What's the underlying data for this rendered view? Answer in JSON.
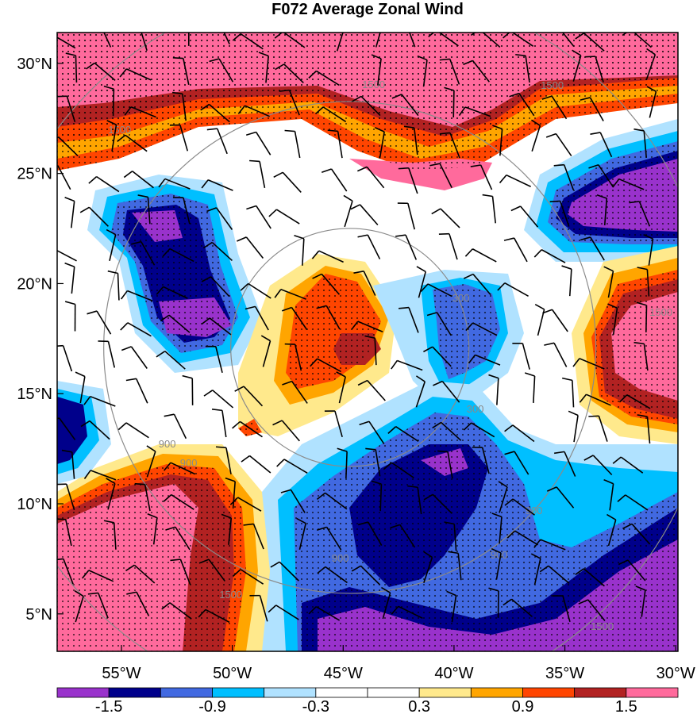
{
  "chart_data": {
    "type": "heatmap",
    "title": "F072 Average Zonal Wind",
    "x_ticks": [
      "55°W",
      "50°W",
      "45°W",
      "40°W",
      "35°W",
      "30°W"
    ],
    "x_tick_values": [
      -55,
      -50,
      -45,
      -40,
      -35,
      -30
    ],
    "y_ticks": [
      "30°N",
      "25°N",
      "20°N",
      "15°N",
      "10°N",
      "5°N"
    ],
    "y_tick_values": [
      30,
      25,
      20,
      15,
      10,
      5
    ],
    "xlim": [
      -57.9,
      -29.9
    ],
    "ylim": [
      3.3,
      31.4
    ],
    "colorbar": {
      "levels": [
        -1.5,
        -1.2,
        -0.9,
        -0.6,
        -0.3,
        0,
        0.3,
        0.6,
        0.9,
        1.2,
        1.5
      ],
      "tick_labels": [
        "-1.5",
        "-0.9",
        "-0.3",
        "0.3",
        "0.9",
        "1.5"
      ],
      "tick_values": [
        -1.5,
        -0.9,
        -0.3,
        0.3,
        0.9,
        1.5
      ],
      "colors": [
        "#9932cc",
        "#00008b",
        "#4169e1",
        "#00bfff",
        "#b0e2ff",
        "#ffffff",
        "#ffffff",
        "#ffe98c",
        "#ffa500",
        "#ff4500",
        "#b22222",
        "#ff6a9c"
      ]
    },
    "range_rings": {
      "center": [
        -44.7,
        17.1
      ],
      "radii_km": [
        300,
        900,
        1500
      ],
      "labels": [
        "300",
        "300",
        "900",
        "900",
        "900",
        "900",
        "900",
        "1500",
        "1500",
        "1500",
        "1500",
        "1500",
        "1500",
        "1500"
      ],
      "color": "#8a8a8a"
    },
    "stippled_regions": "|value| >= 0.9",
    "wind_barbs": true
  }
}
